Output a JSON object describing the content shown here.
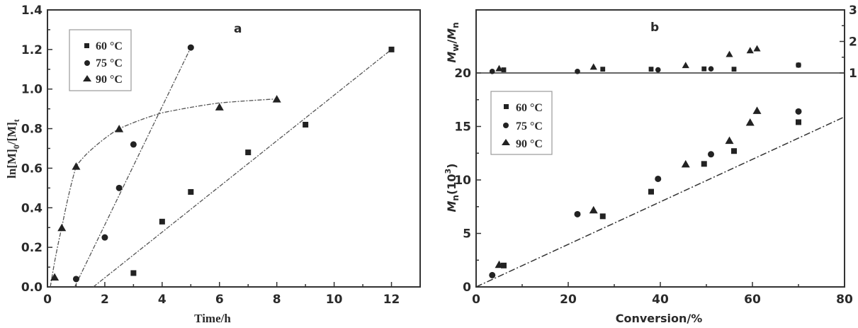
{
  "chart_data": [
    {
      "type": "scatter",
      "panel_label": "a",
      "title": "",
      "xlabel": "Time/h",
      "ylabel": "ln[M]0/[M]t",
      "xlim": [
        0,
        13
      ],
      "ylim": [
        0,
        1.4
      ],
      "xticks": [
        0,
        2,
        4,
        6,
        8,
        10,
        12
      ],
      "yticks": [
        0.0,
        0.2,
        0.4,
        0.6,
        0.8,
        1.0,
        1.2,
        1.4
      ],
      "xtick_labels": [
        "0",
        "2",
        "4",
        "6",
        "8",
        "10",
        "12"
      ],
      "ytick_labels": [
        "0.0",
        "0.2",
        "0.4",
        "0.6",
        "0.8",
        "1.0",
        "1.2",
        "1.4"
      ],
      "grid": false,
      "legend_position": "upper-left",
      "series": [
        {
          "name": "60 °C",
          "marker": "square",
          "x": [
            3,
            4,
            5,
            7,
            9,
            12
          ],
          "y": [
            0.07,
            0.33,
            0.48,
            0.68,
            0.82,
            1.2
          ],
          "fit": "linear",
          "fit_line": [
            [
              1.6,
              0.0
            ],
            [
              12,
              1.2
            ]
          ]
        },
        {
          "name": "75 °C",
          "marker": "circle",
          "x": [
            1,
            2,
            2.5,
            3,
            5
          ],
          "y": [
            0.04,
            0.25,
            0.5,
            0.72,
            1.21
          ],
          "fit": "linear",
          "fit_line": [
            [
              0.95,
              0.0
            ],
            [
              5,
              1.21
            ]
          ]
        },
        {
          "name": "90 °C",
          "marker": "triangle",
          "x": [
            0.25,
            0.5,
            1,
            2.5,
            6,
            8
          ],
          "y": [
            0.05,
            0.3,
            0.61,
            0.8,
            0.91,
            0.95
          ],
          "fit": "curve",
          "fit_line": [
            [
              0.1,
              0.0
            ],
            [
              0.5,
              0.3
            ],
            [
              1.0,
              0.61
            ],
            [
              1.5,
              0.69
            ],
            [
              2.5,
              0.8
            ],
            [
              4,
              0.88
            ],
            [
              6,
              0.93
            ],
            [
              8,
              0.95
            ]
          ]
        }
      ]
    },
    {
      "type": "scatter",
      "panel_label": "b",
      "title": "",
      "xlabel": "Conversion/%",
      "ylabel": "Mn(10^3)",
      "ylabel_upper": "Mw/Mn",
      "xlim": [
        0,
        80
      ],
      "ylim": [
        0,
        20
      ],
      "ylim_upper": [
        1,
        3
      ],
      "xticks": [
        0,
        20,
        40,
        60,
        80
      ],
      "yticks": [
        0,
        5,
        10,
        15,
        20
      ],
      "yticks_upper": [
        1,
        2,
        3
      ],
      "xtick_labels": [
        "0",
        "20",
        "40",
        "60",
        "80"
      ],
      "ytick_labels": [
        "0",
        "5",
        "10",
        "15",
        "20"
      ],
      "ytick_labels_upper": [
        "1",
        "2",
        "3"
      ],
      "grid": false,
      "legend_position": "middle-left",
      "theoretical_line": [
        [
          0,
          0
        ],
        [
          80,
          15.9
        ]
      ],
      "series": [
        {
          "name": "60 °C",
          "marker": "square",
          "x": [
            6,
            27.5,
            38,
            49.5,
            56,
            70
          ],
          "Mn": [
            2.0,
            6.6,
            8.9,
            11.5,
            12.7,
            15.4
          ],
          "PDI": [
            1.1,
            1.12,
            1.12,
            1.13,
            1.12,
            1.25
          ]
        },
        {
          "name": "75 °C",
          "marker": "circle",
          "x": [
            3.5,
            22,
            39.5,
            51,
            70
          ],
          "Mn": [
            1.1,
            6.8,
            10.1,
            12.4,
            16.4
          ],
          "PDI": [
            1.05,
            1.05,
            1.1,
            1.13,
            1.25
          ]
        },
        {
          "name": "90 °C",
          "marker": "triangle",
          "x": [
            5,
            25.5,
            45.5,
            55,
            59.5,
            61
          ],
          "Mn": [
            2.1,
            7.2,
            11.5,
            13.7,
            15.4,
            16.5
          ],
          "PDI": [
            1.15,
            1.2,
            1.25,
            1.6,
            1.72,
            1.78
          ]
        }
      ]
    }
  ],
  "chartA": {
    "panel": "a",
    "xlabel": "Time/h",
    "ylabel_main": "ln[M]",
    "ylabel_sub0": "0",
    "ylabel_mid": "/[M]",
    "ylabel_subt": "t",
    "legend": [
      "60 °C",
      "75 °C",
      "90 °C"
    ]
  },
  "chartB": {
    "panel": "b",
    "xlabel": "Conversion/%",
    "ylabel_upper_M1": "M",
    "ylabel_upper_w": "w",
    "ylabel_upper_slash": "/",
    "ylabel_upper_M2": "M",
    "ylabel_upper_n": "n",
    "ylabel_M": "M",
    "ylabel_n": "n",
    "ylabel_rest": "(10",
    "ylabel_exp": "3",
    "ylabel_close": ")",
    "legend": [
      "60 °C",
      "75 °C",
      "90 °C"
    ]
  }
}
